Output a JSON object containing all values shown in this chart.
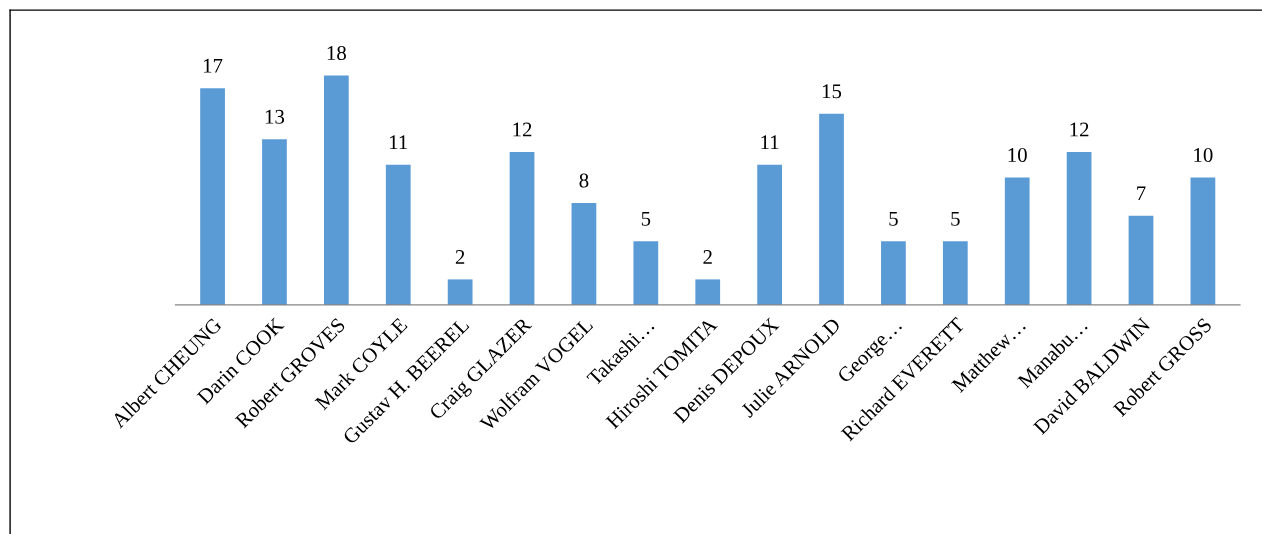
{
  "chart_data": {
    "type": "bar",
    "categories": [
      "Albert CHEUNG",
      "Darin COOK",
      "Robert GROVES",
      "Mark COYLE",
      "Gustav H. BEEREL",
      "Craig GLAZER",
      "Wolfram VOGEL",
      "Takashi…",
      "Hiroshi TOMITA",
      "Denis DEPOUX",
      "Julie ARNOLD",
      "George…",
      "Richard EVERETT",
      "Matthew…",
      "Manabu…",
      "David BALDWIN",
      "Robert GROSS"
    ],
    "values": [
      17,
      13,
      18,
      11,
      2,
      12,
      8,
      5,
      2,
      11,
      15,
      5,
      5,
      10,
      12,
      7,
      10
    ],
    "color": "#5b9bd5",
    "data_labels": true,
    "grid": false,
    "legend": false
  }
}
